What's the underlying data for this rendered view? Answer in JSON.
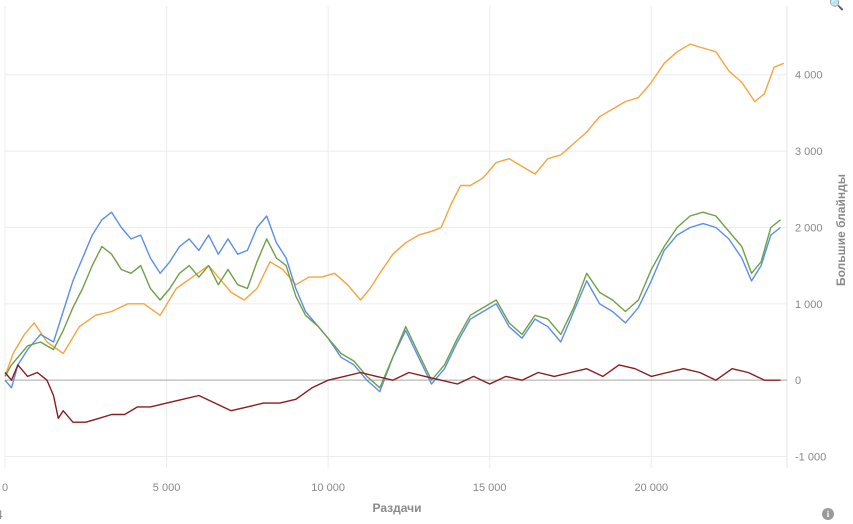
{
  "chart_data": {
    "type": "line",
    "xlabel": "Раздачи",
    "ylabel": "Большие блайнды",
    "xlim": [
      0,
      24200
    ],
    "ylim": [
      -1150,
      4900
    ],
    "x_ticks": [
      0,
      5000,
      10000,
      15000,
      20000
    ],
    "x_tick_labels": [
      "0",
      "5 000",
      "10 000",
      "15 000",
      "20 000"
    ],
    "y_ticks": [
      -1000,
      0,
      1000,
      2000,
      3000,
      4000
    ],
    "y_tick_labels": [
      "-1 000",
      "0",
      "1 000",
      "2 000",
      "3 000",
      "4 000"
    ],
    "grid": true,
    "zero_line": true,
    "series": [
      {
        "color": "#f7a43e",
        "x": [
          0,
          250,
          600,
          900,
          1300,
          1800,
          2300,
          2800,
          3300,
          3800,
          4300,
          4800,
          5300,
          5800,
          6300,
          6700,
          7000,
          7400,
          7800,
          8200,
          8600,
          9000,
          9400,
          9800,
          10200,
          10600,
          11000,
          11300,
          11600,
          12000,
          12400,
          12800,
          13200,
          13500,
          13800,
          14100,
          14400,
          14800,
          15200,
          15600,
          16000,
          16400,
          16800,
          17200,
          17600,
          18000,
          18400,
          18800,
          19200,
          19600,
          20000,
          20400,
          20800,
          21200,
          21600,
          22000,
          22400,
          22800,
          23200,
          23500,
          23800,
          24100
        ],
        "y": [
          50,
          350,
          600,
          750,
          500,
          350,
          700,
          850,
          900,
          1000,
          1000,
          850,
          1200,
          1350,
          1500,
          1300,
          1150,
          1050,
          1200,
          1550,
          1450,
          1250,
          1350,
          1350,
          1400,
          1250,
          1050,
          1200,
          1400,
          1650,
          1800,
          1900,
          1950,
          2000,
          2300,
          2550,
          2550,
          2650,
          2850,
          2900,
          2800,
          2700,
          2900,
          2950,
          3100,
          3250,
          3450,
          3550,
          3650,
          3700,
          3900,
          4150,
          4300,
          4400,
          4350,
          4300,
          4050,
          3900,
          3650,
          3750,
          4100,
          4150
        ]
      },
      {
        "color": "#5b8def",
        "x": [
          0,
          200,
          400,
          700,
          1100,
          1500,
          1800,
          2100,
          2400,
          2700,
          3000,
          3300,
          3600,
          3900,
          4200,
          4500,
          4800,
          5100,
          5400,
          5700,
          6000,
          6300,
          6600,
          6900,
          7200,
          7500,
          7800,
          8100,
          8400,
          8700,
          9000,
          9300,
          9700,
          10000,
          10400,
          10800,
          11200,
          11600,
          12000,
          12400,
          12800,
          13200,
          13600,
          14000,
          14400,
          14800,
          15200,
          15600,
          16000,
          16400,
          16800,
          17200,
          17600,
          18000,
          18400,
          18800,
          19200,
          19600,
          20000,
          20400,
          20800,
          21200,
          21600,
          22000,
          22400,
          22800,
          23100,
          23400,
          23700,
          24000
        ],
        "y": [
          0,
          -100,
          200,
          400,
          600,
          500,
          900,
          1300,
          1600,
          1900,
          2100,
          2200,
          2000,
          1850,
          1900,
          1600,
          1400,
          1550,
          1750,
          1850,
          1700,
          1900,
          1650,
          1850,
          1650,
          1700,
          2000,
          2150,
          1800,
          1600,
          1200,
          900,
          700,
          550,
          300,
          200,
          0,
          -150,
          300,
          650,
          300,
          -50,
          150,
          500,
          800,
          900,
          1000,
          700,
          550,
          800,
          700,
          500,
          900,
          1300,
          1000,
          900,
          750,
          950,
          1300,
          1700,
          1900,
          2000,
          2050,
          2000,
          1850,
          1600,
          1300,
          1500,
          1900,
          2000
        ]
      },
      {
        "color": "#6ea045",
        "x": [
          0,
          200,
          400,
          700,
          1100,
          1500,
          1800,
          2100,
          2400,
          2700,
          3000,
          3300,
          3600,
          3900,
          4200,
          4500,
          4800,
          5100,
          5400,
          5700,
          6000,
          6300,
          6600,
          6900,
          7200,
          7500,
          7800,
          8100,
          8400,
          8700,
          9000,
          9300,
          9700,
          10000,
          10400,
          10800,
          11200,
          11600,
          12000,
          12400,
          12800,
          13200,
          13600,
          14000,
          14400,
          14800,
          15200,
          15600,
          16000,
          16400,
          16800,
          17200,
          17600,
          18000,
          18400,
          18800,
          19200,
          19600,
          20000,
          20400,
          20800,
          21200,
          21600,
          22000,
          22400,
          22800,
          23100,
          23400,
          23700,
          24000
        ],
        "y": [
          50,
          200,
          300,
          450,
          500,
          400,
          650,
          950,
          1200,
          1500,
          1750,
          1650,
          1450,
          1400,
          1500,
          1200,
          1050,
          1200,
          1400,
          1500,
          1350,
          1500,
          1250,
          1450,
          1250,
          1200,
          1550,
          1850,
          1600,
          1500,
          1100,
          850,
          700,
          550,
          350,
          250,
          50,
          -100,
          300,
          700,
          350,
          0,
          200,
          550,
          850,
          950,
          1050,
          750,
          600,
          850,
          800,
          600,
          950,
          1400,
          1150,
          1050,
          900,
          1050,
          1450,
          1750,
          2000,
          2150,
          2200,
          2150,
          1950,
          1750,
          1400,
          1550,
          2000,
          2100
        ]
      },
      {
        "color": "#8b1c1c",
        "x": [
          0,
          200,
          400,
          700,
          1000,
          1300,
          1500,
          1650,
          1800,
          2100,
          2500,
          2900,
          3300,
          3700,
          4100,
          4500,
          5000,
          5500,
          6000,
          6500,
          7000,
          7500,
          8000,
          8500,
          9000,
          9500,
          10000,
          10500,
          11000,
          11500,
          12000,
          12500,
          13000,
          13500,
          14000,
          14500,
          15000,
          15500,
          16000,
          16500,
          17000,
          17500,
          18000,
          18500,
          19000,
          19500,
          20000,
          20500,
          21000,
          21500,
          22000,
          22500,
          23000,
          23500,
          24000
        ],
        "y": [
          100,
          0,
          200,
          50,
          100,
          0,
          -200,
          -500,
          -400,
          -550,
          -550,
          -500,
          -450,
          -450,
          -350,
          -350,
          -300,
          -250,
          -200,
          -300,
          -400,
          -350,
          -300,
          -300,
          -250,
          -100,
          0,
          50,
          100,
          50,
          0,
          100,
          50,
          0,
          -50,
          50,
          -50,
          50,
          0,
          100,
          50,
          100,
          150,
          50,
          200,
          150,
          50,
          100,
          150,
          100,
          0,
          150,
          100,
          0,
          0
        ]
      }
    ]
  },
  "icons": {
    "top_right": "search-icon",
    "bottom_right": "info-icon",
    "bottom_left": "truncated-digit"
  },
  "edge": {
    "top_right": "🔍",
    "bottom_right": "i",
    "bottom_left": "4"
  }
}
